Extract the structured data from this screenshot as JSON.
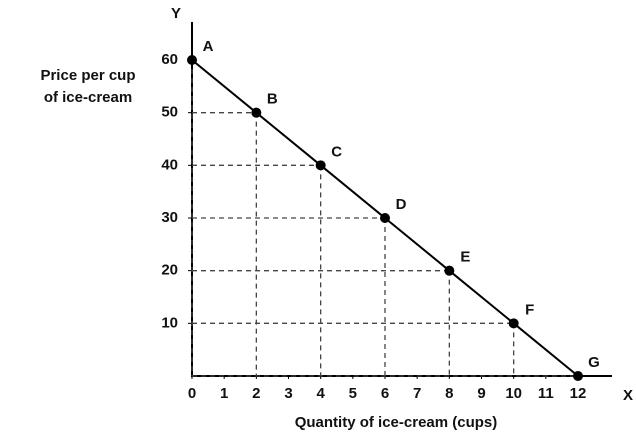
{
  "chart_data": {
    "type": "line",
    "x_axis_name": "X",
    "y_axis_name": "Y",
    "x_label": "Quantity of ice-cream (cups)",
    "y_label": [
      "Price per cup",
      "of ice-cream"
    ],
    "x": [
      0,
      2,
      4,
      6,
      8,
      10,
      12
    ],
    "series": [
      {
        "name": null,
        "color": "#000000",
        "values": [
          60,
          50,
          40,
          30,
          20,
          10,
          0
        ]
      }
    ],
    "point_labels": [
      "A",
      "B",
      "C",
      "D",
      "E",
      "F",
      "G"
    ],
    "xlim": [
      0,
      12
    ],
    "ylim": [
      0,
      60
    ],
    "xticks": [
      0,
      1,
      2,
      3,
      4,
      5,
      6,
      7,
      8,
      9,
      10,
      11,
      12
    ],
    "yticks": [
      10,
      20,
      30,
      40,
      50,
      60
    ],
    "drop_lines": true
  }
}
